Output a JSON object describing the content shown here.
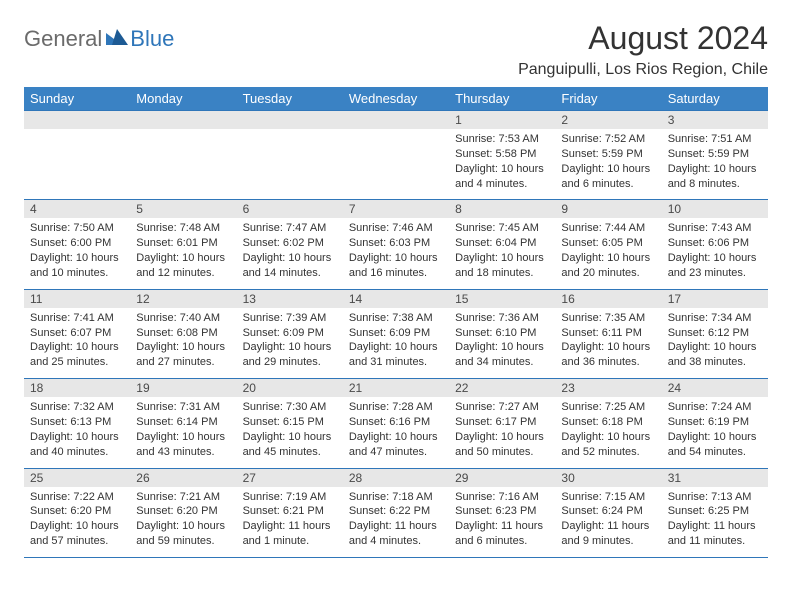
{
  "brand": {
    "part1": "General",
    "part2": "Blue",
    "text_color": "#6b6b6b",
    "accent_color": "#2f76b9"
  },
  "title": "August 2024",
  "location": "Panguipulli, Los Rios Region, Chile",
  "colors": {
    "header_bg": "#3a82c4",
    "header_text": "#ffffff",
    "band_bg": "#e7e7e7",
    "rule": "#2f76b9",
    "body_text": "#333333"
  },
  "day_headers": [
    "Sunday",
    "Monday",
    "Tuesday",
    "Wednesday",
    "Thursday",
    "Friday",
    "Saturday"
  ],
  "weeks": [
    [
      {
        "n": "",
        "sr": "",
        "ss": "",
        "dl": ""
      },
      {
        "n": "",
        "sr": "",
        "ss": "",
        "dl": ""
      },
      {
        "n": "",
        "sr": "",
        "ss": "",
        "dl": ""
      },
      {
        "n": "",
        "sr": "",
        "ss": "",
        "dl": ""
      },
      {
        "n": "1",
        "sr": "Sunrise: 7:53 AM",
        "ss": "Sunset: 5:58 PM",
        "dl": "Daylight: 10 hours and 4 minutes."
      },
      {
        "n": "2",
        "sr": "Sunrise: 7:52 AM",
        "ss": "Sunset: 5:59 PM",
        "dl": "Daylight: 10 hours and 6 minutes."
      },
      {
        "n": "3",
        "sr": "Sunrise: 7:51 AM",
        "ss": "Sunset: 5:59 PM",
        "dl": "Daylight: 10 hours and 8 minutes."
      }
    ],
    [
      {
        "n": "4",
        "sr": "Sunrise: 7:50 AM",
        "ss": "Sunset: 6:00 PM",
        "dl": "Daylight: 10 hours and 10 minutes."
      },
      {
        "n": "5",
        "sr": "Sunrise: 7:48 AM",
        "ss": "Sunset: 6:01 PM",
        "dl": "Daylight: 10 hours and 12 minutes."
      },
      {
        "n": "6",
        "sr": "Sunrise: 7:47 AM",
        "ss": "Sunset: 6:02 PM",
        "dl": "Daylight: 10 hours and 14 minutes."
      },
      {
        "n": "7",
        "sr": "Sunrise: 7:46 AM",
        "ss": "Sunset: 6:03 PM",
        "dl": "Daylight: 10 hours and 16 minutes."
      },
      {
        "n": "8",
        "sr": "Sunrise: 7:45 AM",
        "ss": "Sunset: 6:04 PM",
        "dl": "Daylight: 10 hours and 18 minutes."
      },
      {
        "n": "9",
        "sr": "Sunrise: 7:44 AM",
        "ss": "Sunset: 6:05 PM",
        "dl": "Daylight: 10 hours and 20 minutes."
      },
      {
        "n": "10",
        "sr": "Sunrise: 7:43 AM",
        "ss": "Sunset: 6:06 PM",
        "dl": "Daylight: 10 hours and 23 minutes."
      }
    ],
    [
      {
        "n": "11",
        "sr": "Sunrise: 7:41 AM",
        "ss": "Sunset: 6:07 PM",
        "dl": "Daylight: 10 hours and 25 minutes."
      },
      {
        "n": "12",
        "sr": "Sunrise: 7:40 AM",
        "ss": "Sunset: 6:08 PM",
        "dl": "Daylight: 10 hours and 27 minutes."
      },
      {
        "n": "13",
        "sr": "Sunrise: 7:39 AM",
        "ss": "Sunset: 6:09 PM",
        "dl": "Daylight: 10 hours and 29 minutes."
      },
      {
        "n": "14",
        "sr": "Sunrise: 7:38 AM",
        "ss": "Sunset: 6:09 PM",
        "dl": "Daylight: 10 hours and 31 minutes."
      },
      {
        "n": "15",
        "sr": "Sunrise: 7:36 AM",
        "ss": "Sunset: 6:10 PM",
        "dl": "Daylight: 10 hours and 34 minutes."
      },
      {
        "n": "16",
        "sr": "Sunrise: 7:35 AM",
        "ss": "Sunset: 6:11 PM",
        "dl": "Daylight: 10 hours and 36 minutes."
      },
      {
        "n": "17",
        "sr": "Sunrise: 7:34 AM",
        "ss": "Sunset: 6:12 PM",
        "dl": "Daylight: 10 hours and 38 minutes."
      }
    ],
    [
      {
        "n": "18",
        "sr": "Sunrise: 7:32 AM",
        "ss": "Sunset: 6:13 PM",
        "dl": "Daylight: 10 hours and 40 minutes."
      },
      {
        "n": "19",
        "sr": "Sunrise: 7:31 AM",
        "ss": "Sunset: 6:14 PM",
        "dl": "Daylight: 10 hours and 43 minutes."
      },
      {
        "n": "20",
        "sr": "Sunrise: 7:30 AM",
        "ss": "Sunset: 6:15 PM",
        "dl": "Daylight: 10 hours and 45 minutes."
      },
      {
        "n": "21",
        "sr": "Sunrise: 7:28 AM",
        "ss": "Sunset: 6:16 PM",
        "dl": "Daylight: 10 hours and 47 minutes."
      },
      {
        "n": "22",
        "sr": "Sunrise: 7:27 AM",
        "ss": "Sunset: 6:17 PM",
        "dl": "Daylight: 10 hours and 50 minutes."
      },
      {
        "n": "23",
        "sr": "Sunrise: 7:25 AM",
        "ss": "Sunset: 6:18 PM",
        "dl": "Daylight: 10 hours and 52 minutes."
      },
      {
        "n": "24",
        "sr": "Sunrise: 7:24 AM",
        "ss": "Sunset: 6:19 PM",
        "dl": "Daylight: 10 hours and 54 minutes."
      }
    ],
    [
      {
        "n": "25",
        "sr": "Sunrise: 7:22 AM",
        "ss": "Sunset: 6:20 PM",
        "dl": "Daylight: 10 hours and 57 minutes."
      },
      {
        "n": "26",
        "sr": "Sunrise: 7:21 AM",
        "ss": "Sunset: 6:20 PM",
        "dl": "Daylight: 10 hours and 59 minutes."
      },
      {
        "n": "27",
        "sr": "Sunrise: 7:19 AM",
        "ss": "Sunset: 6:21 PM",
        "dl": "Daylight: 11 hours and 1 minute."
      },
      {
        "n": "28",
        "sr": "Sunrise: 7:18 AM",
        "ss": "Sunset: 6:22 PM",
        "dl": "Daylight: 11 hours and 4 minutes."
      },
      {
        "n": "29",
        "sr": "Sunrise: 7:16 AM",
        "ss": "Sunset: 6:23 PM",
        "dl": "Daylight: 11 hours and 6 minutes."
      },
      {
        "n": "30",
        "sr": "Sunrise: 7:15 AM",
        "ss": "Sunset: 6:24 PM",
        "dl": "Daylight: 11 hours and 9 minutes."
      },
      {
        "n": "31",
        "sr": "Sunrise: 7:13 AM",
        "ss": "Sunset: 6:25 PM",
        "dl": "Daylight: 11 hours and 11 minutes."
      }
    ]
  ]
}
